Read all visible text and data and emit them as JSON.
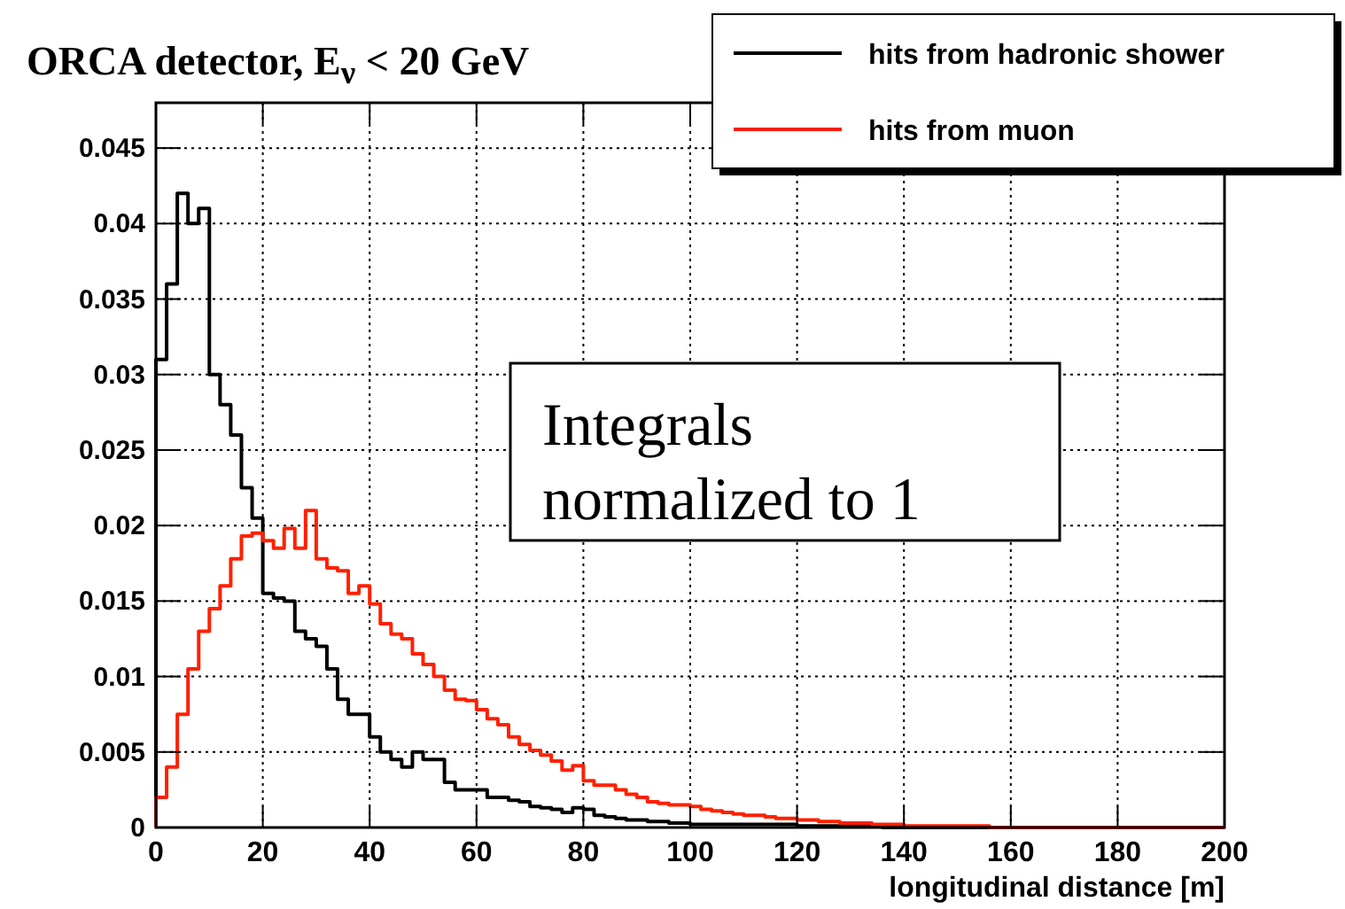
{
  "chart_data": {
    "type": "histogram",
    "title": "ORCA detector, E$_{ν}$ < 20 GeV",
    "xlabel": "longitudinal distance [m]",
    "annotations": [
      "Integrals normalized to 1"
    ],
    "bins": [
      0,
      2,
      4,
      6,
      8,
      10,
      12,
      14,
      16,
      18,
      20,
      22,
      24,
      26,
      28,
      30,
      32,
      34,
      36,
      38,
      40,
      42,
      44,
      46,
      48,
      50,
      52,
      54,
      56,
      58,
      60,
      62,
      64,
      66,
      68,
      70,
      72,
      74,
      76,
      78,
      80,
      82,
      84,
      86,
      88,
      90,
      92,
      94,
      96,
      98,
      100,
      102,
      104,
      106,
      108,
      110,
      112,
      114,
      116,
      118,
      120,
      122,
      124,
      126,
      128,
      130,
      132,
      134,
      136,
      138,
      140,
      142,
      144,
      146,
      148,
      150,
      152,
      154,
      156,
      158,
      160,
      162,
      164,
      166,
      168,
      170,
      172,
      174,
      176,
      178,
      180,
      182,
      184,
      186,
      188,
      190,
      192,
      194,
      196,
      198,
      200
    ],
    "series": [
      {
        "name": "hits from hadronic shower",
        "color": "#000000",
        "values": [
          0.031,
          0.036,
          0.042,
          0.04,
          0.041,
          0.03,
          0.028,
          0.026,
          0.0225,
          0.0205,
          0.0155,
          0.0152,
          0.015,
          0.013,
          0.0125,
          0.012,
          0.0105,
          0.0085,
          0.0075,
          0.0075,
          0.006,
          0.005,
          0.0045,
          0.004,
          0.005,
          0.0045,
          0.0045,
          0.003,
          0.0025,
          0.0025,
          0.0025,
          0.002,
          0.002,
          0.0018,
          0.0017,
          0.0014,
          0.0013,
          0.0012,
          0.001,
          0.0013,
          0.0012,
          0.0008,
          0.0007,
          0.0006,
          0.0005,
          0.0005,
          0.0004,
          0.0004,
          0.0003,
          0.0003,
          0.0002,
          0.0002,
          0.0002,
          0.0002,
          0.0002,
          0.0002,
          0.0002,
          0.0002,
          0.0002,
          0.0002,
          0.0001,
          0.0001,
          0.0001,
          0.0001,
          0.0001,
          0.0001,
          0.0001,
          0.0001,
          0,
          0,
          0,
          0,
          0,
          0,
          0,
          0,
          0,
          0,
          0,
          0,
          0,
          0,
          0,
          0,
          0,
          0,
          0,
          0,
          0,
          0,
          0,
          0,
          0,
          0,
          0,
          0,
          0,
          0,
          0,
          0
        ]
      },
      {
        "name": "hits from muon",
        "color": "#ff2000",
        "values": [
          0.002,
          0.004,
          0.0075,
          0.0105,
          0.013,
          0.0145,
          0.016,
          0.0178,
          0.0193,
          0.0195,
          0.019,
          0.0185,
          0.0198,
          0.0185,
          0.021,
          0.0178,
          0.0172,
          0.017,
          0.0155,
          0.016,
          0.0148,
          0.0135,
          0.0128,
          0.0125,
          0.0115,
          0.0108,
          0.01,
          0.0091,
          0.0085,
          0.0084,
          0.0078,
          0.0072,
          0.0068,
          0.006,
          0.0055,
          0.0051,
          0.0048,
          0.0044,
          0.0038,
          0.0041,
          0.0031,
          0.0028,
          0.0028,
          0.0025,
          0.0022,
          0.002,
          0.0017,
          0.0016,
          0.0015,
          0.0015,
          0.0014,
          0.0012,
          0.0011,
          0.001,
          0.0009,
          0.0008,
          0.0008,
          0.0007,
          0.0006,
          0.0006,
          0.0005,
          0.0005,
          0.0004,
          0.0004,
          0.0003,
          0.0003,
          0.0003,
          0.0002,
          0.0002,
          0.0002,
          0.0001,
          0.0001,
          0.0001,
          0.0001,
          0.0001,
          0.0001,
          0.0001,
          0.0001,
          0,
          0,
          0,
          0,
          0,
          0,
          0,
          0,
          0,
          0,
          0,
          0,
          0,
          0,
          0,
          0,
          0,
          0,
          0,
          0,
          0,
          0
        ]
      }
    ],
    "xlim": [
      0,
      200
    ],
    "xticks": [
      0,
      20,
      40,
      60,
      80,
      100,
      120,
      140,
      160,
      180,
      200
    ],
    "ylim": [
      0,
      0.048
    ],
    "yticks": [
      0,
      0.005,
      0.01,
      0.015,
      0.02,
      0.025,
      0.03,
      0.035,
      0.04,
      0.045
    ],
    "grid": true,
    "legend": "top right"
  }
}
